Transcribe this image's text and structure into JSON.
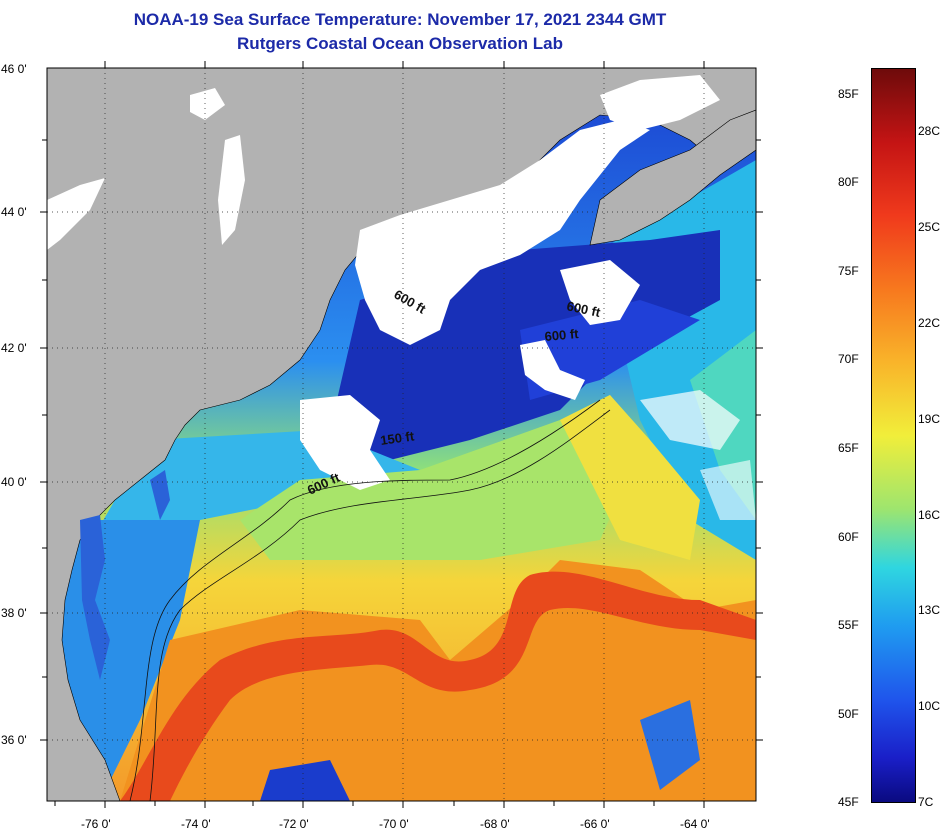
{
  "header": {
    "title": "NOAA-19 Sea Surface Temperature:  November 17, 2021 2344 GMT",
    "subtitle": "Rutgers Coastal Ocean Observation Lab"
  },
  "axes": {
    "lat_labels": [
      "46 0'",
      "44 0'",
      "42 0'",
      "40 0'",
      "38 0'",
      "36 0'"
    ],
    "lon_labels": [
      "-76 0'",
      "-74 0'",
      "-72 0'",
      "-70 0'",
      "-68 0'",
      "-66 0'",
      "-64 0'"
    ]
  },
  "contours": {
    "c1": "600 ft",
    "c2": "600 ft",
    "c3": "600 ft",
    "c4": "150 ft",
    "c5": "600 ft"
  },
  "colorbar": {
    "f_labels": [
      "85F",
      "80F",
      "75F",
      "70F",
      "65F",
      "60F",
      "55F",
      "50F",
      "45F"
    ],
    "c_labels": [
      "28C",
      "25C",
      "22C",
      "19C",
      "16C",
      "13C",
      "10C",
      "7C"
    ]
  },
  "colors": {
    "land": "#b2b2b2",
    "cloud": "#ffffff",
    "cold": "#0a1e9c",
    "mid": "#2ec6ea",
    "warm": "#f7e53a",
    "hot": "#f27a1a",
    "gulf_stream": "#e0361c"
  }
}
